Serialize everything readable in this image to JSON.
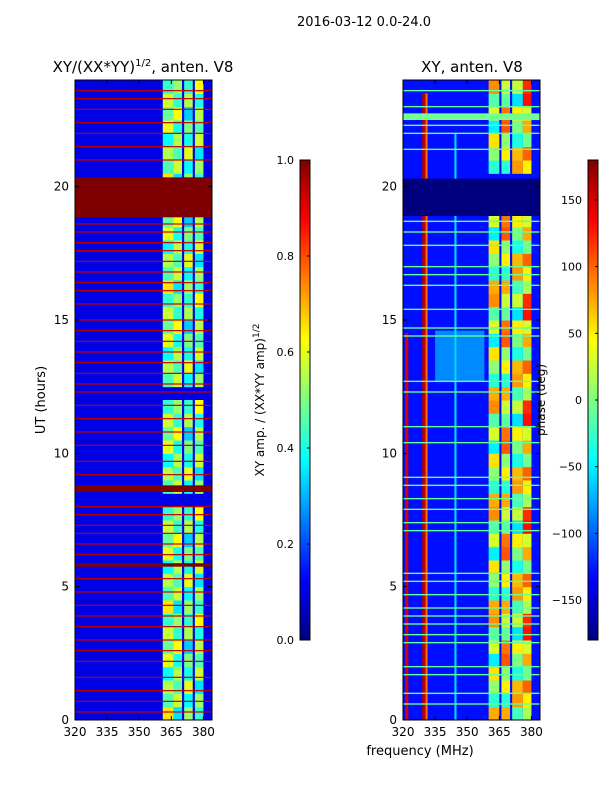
{
  "figure": {
    "suptitle": "2016-03-12 0.0-24.0",
    "shared_xlabel": "frequency (MHz)"
  },
  "colors": {
    "jet": [
      "#00007f",
      "#0000ff",
      "#007fff",
      "#00ffff",
      "#7fff7f",
      "#ffff00",
      "#ff7f00",
      "#ff0000",
      "#7f0000"
    ],
    "axis": "#000000",
    "background": "#ffffff"
  },
  "chart_data": [
    {
      "type": "heatmap",
      "name": "ratio",
      "title_main": "XY/(XX*YY)",
      "title_sup": "1/2",
      "title_tail": ", anten. V8",
      "xlabel": "",
      "ylabel": "UT (hours)",
      "xlim": [
        320,
        384
      ],
      "ylim": [
        0,
        24
      ],
      "xticks": [
        320,
        335,
        350,
        365,
        380
      ],
      "yticks": [
        0,
        5,
        10,
        15,
        20
      ],
      "background_value": 0.1,
      "bands": [
        {
          "x": [
            361,
            366
          ],
          "value": 0.55
        },
        {
          "x": [
            366,
            370
          ],
          "value": 0.5
        },
        {
          "x": [
            371,
            375
          ],
          "value": 0.45
        },
        {
          "x": [
            376,
            380
          ],
          "value": 0.5
        }
      ],
      "band_row_values": [
        0.75,
        0.35,
        0.55,
        0.2,
        0.65,
        0.4,
        0.6,
        0.3
      ],
      "band_gaps_y": [
        [
          8.2,
          8.6
        ],
        [
          12.2,
          12.4
        ],
        [
          18.9,
          19.1
        ]
      ],
      "flagged_rows": [
        {
          "y": [
            18.85,
            20.35
          ],
          "value": 1.0
        },
        {
          "y": [
            8.55,
            8.8
          ],
          "value": 1.0
        },
        {
          "y": [
            5.75,
            5.88
          ],
          "value": 1.0
        }
      ],
      "strips": [
        0.3,
        0.7,
        1.1,
        1.6,
        2.2,
        2.6,
        3.0,
        3.5,
        3.9,
        4.3,
        4.8,
        5.3,
        6.2,
        6.6,
        7.0,
        7.3,
        7.7,
        8.0,
        9.2,
        9.7,
        10.3,
        10.8,
        11.3,
        11.8,
        12.3,
        12.6,
        13.0,
        13.4,
        13.8,
        14.2,
        14.6,
        15.0,
        15.6,
        16.1,
        16.4,
        16.8,
        17.2,
        17.6,
        17.9,
        18.3,
        18.6,
        21.0,
        21.5,
        22.0,
        22.4,
        22.9,
        23.3,
        23.6
      ],
      "strip_value": 0.93,
      "colorbar": {
        "label_main": "XY amp. / (XX*YY amp)",
        "label_sup": "1/2",
        "min": 0.0,
        "max": 1.0,
        "ticks": [
          0.0,
          0.2,
          0.4,
          0.6,
          0.8,
          1.0
        ],
        "tick_labels": [
          "0.0",
          "0.2",
          "0.4",
          "0.6",
          "0.8",
          "1.0"
        ]
      }
    },
    {
      "type": "heatmap",
      "name": "phase",
      "title_main": "XY, anten. V8",
      "title_sup": "",
      "title_tail": "",
      "xlabel": "frequency (MHz)",
      "ylabel": "",
      "xlim": [
        320,
        384
      ],
      "ylim": [
        0,
        24
      ],
      "xticks": [
        320,
        335,
        350,
        365,
        380
      ],
      "yticks": [
        0,
        5,
        10,
        15,
        20
      ],
      "background_value": -130,
      "bands": [
        {
          "x": [
            360,
            365
          ],
          "value": 0
        },
        {
          "x": [
            366,
            370
          ],
          "value": 40
        },
        {
          "x": [
            371,
            376
          ],
          "value": -10
        },
        {
          "x": [
            376,
            380
          ],
          "value": 90
        }
      ],
      "band_row_values": [
        150,
        -60,
        10,
        110,
        -100,
        60,
        -30,
        170
      ],
      "band_gaps_y": [
        [
          18.9,
          20.3
        ]
      ],
      "red_columns": [
        {
          "x": [
            321,
            322.5
          ],
          "y": [
            0,
            14.5
          ],
          "value": 150
        },
        {
          "x": [
            329,
            330.5
          ],
          "y": [
            0,
            23.5
          ],
          "value": 160
        },
        {
          "x": [
            330.5,
            331.5
          ],
          "y": [
            0,
            23.5
          ],
          "value": 100
        },
        {
          "x": [
            344,
            345
          ],
          "y": [
            0,
            22
          ],
          "value": -60
        }
      ],
      "lightblue_region": {
        "x": [
          335,
          358
        ],
        "y": [
          12.7,
          14.6
        ],
        "value": -75
      },
      "flagged_rows": [
        {
          "y": [
            18.9,
            20.3
          ],
          "value": -180
        }
      ],
      "green_lines": [
        0.6,
        1.0,
        1.7,
        2.0,
        2.9,
        3.2,
        3.6,
        3.9,
        4.2,
        4.7,
        5.2,
        5.5,
        7.1,
        7.4,
        7.9,
        8.3,
        8.8,
        9.1,
        10.4,
        11.0,
        12.3,
        12.7,
        14.4,
        14.7,
        15.4,
        16.3,
        16.7,
        17.0,
        17.8,
        18.3,
        18.7,
        21.4,
        22.0,
        22.3,
        23.0,
        23.6
      ],
      "green_value": -10,
      "top_green_band": {
        "y": [
          22.5,
          22.75
        ],
        "value": -5
      },
      "colorbar": {
        "label_main": "phase (deg)",
        "label_sup": "",
        "min": -180,
        "max": 180,
        "ticks": [
          -150,
          -100,
          -50,
          0,
          50,
          100,
          150
        ],
        "tick_labels": [
          "−150",
          "−100",
          "−50",
          "0",
          "50",
          "100",
          "150"
        ]
      }
    }
  ]
}
